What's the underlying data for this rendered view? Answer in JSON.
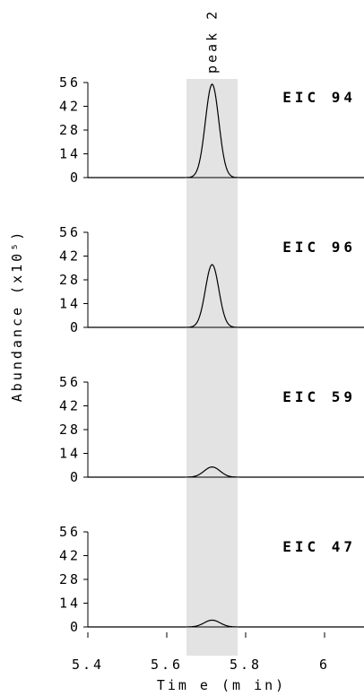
{
  "chart_data": {
    "type": "line",
    "xlabel": "Tim e (m in)",
    "ylabel": "Abundance (x10⁵)",
    "xlim": [
      5.4,
      6.1
    ],
    "ylim": [
      0,
      56
    ],
    "xticks": [
      5.4,
      5.6,
      5.8,
      6
    ],
    "xtick_labels": [
      "5.4",
      "5.6",
      "5.8",
      "6"
    ],
    "yticks": [
      0,
      14,
      28,
      42,
      56
    ],
    "ytick_labels": [
      "0",
      "14",
      "28",
      "42",
      "56"
    ],
    "shaded_region": {
      "x": [
        5.65,
        5.78
      ],
      "label": "peak 2",
      "color": "#e3e3e3"
    },
    "peak_center": 5.715,
    "panels": [
      {
        "label": "EIC 94",
        "peak_height": 55,
        "peak_width": 0.017
      },
      {
        "label": "EIC 96",
        "peak_height": 37,
        "peak_width": 0.017
      },
      {
        "label": "EIC 59",
        "peak_height": 6,
        "peak_width": 0.02
      },
      {
        "label": "EIC 47",
        "peak_height": 4,
        "peak_width": 0.02
      }
    ],
    "grid": false,
    "line_color": "#000000"
  }
}
